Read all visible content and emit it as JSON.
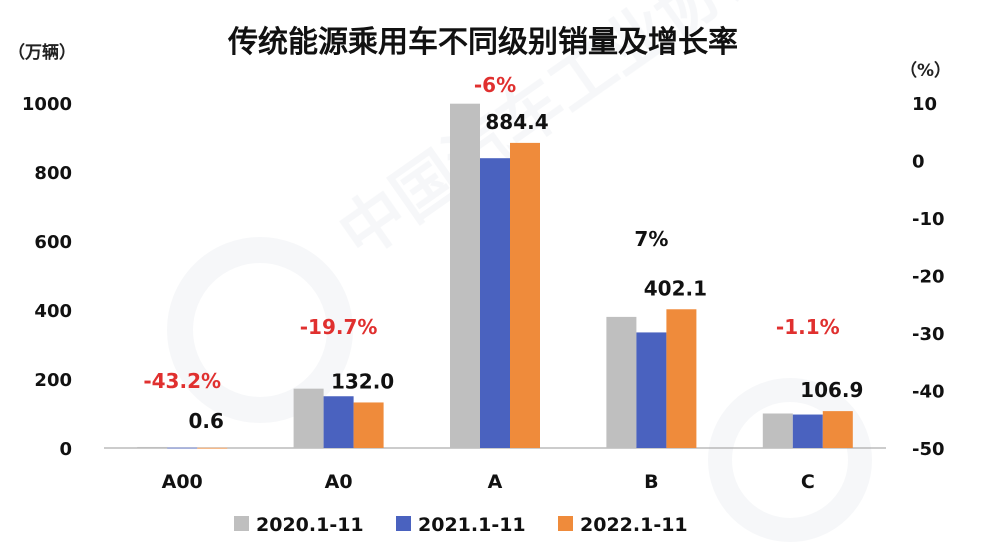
{
  "chart_data": {
    "type": "bar",
    "title": "传统能源乘用车不同级别销量及增长率",
    "ylabel_left": "（万辆）",
    "ylabel_right": "（%）",
    "categories": [
      "A00",
      "A0",
      "A",
      "B",
      "C"
    ],
    "series": [
      {
        "name": "2020.1-11",
        "color": "#bfbfbf",
        "values": [
          3,
          172,
          998,
          380,
          100
        ]
      },
      {
        "name": "2021.1-11",
        "color": "#4a62bf",
        "values": [
          1,
          150,
          840,
          335,
          97
        ]
      },
      {
        "name": "2022.1-11",
        "color": "#ef8b3b",
        "values": [
          0.6,
          132.0,
          884.4,
          402.1,
          106.9
        ]
      }
    ],
    "value_labels": [
      "0.6",
      "132.0",
      "884.4",
      "402.1",
      "106.9"
    ],
    "growth_rates": [
      "-43.2%",
      "-19.7%",
      "-6%",
      "7%",
      "-1.1%"
    ],
    "growth_colors": [
      "#e0302f",
      "#e0302f",
      "#e0302f",
      "#111111",
      "#e0302f"
    ],
    "ylim_left": [
      0,
      1000
    ],
    "yticks_left": [
      "0",
      "200",
      "400",
      "600",
      "800",
      "1000"
    ],
    "ylim_right": [
      -50,
      10
    ],
    "yticks_right": [
      "-50",
      "-40",
      "-30",
      "-20",
      "-10",
      "0",
      "10"
    ],
    "grid": false,
    "legend_position": "bottom"
  }
}
